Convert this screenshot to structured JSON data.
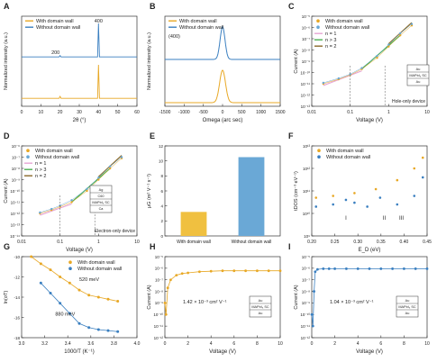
{
  "figure": {
    "title": ""
  },
  "colors": {
    "orange": "#e8a825",
    "blue": "#3a7fc0",
    "light_blue": "#6aa8d6",
    "pink": "#e7a6d3",
    "green": "#4caf50",
    "brown": "#8a6a2a",
    "dark": "#333333"
  },
  "chart_data": [
    {
      "panel": "A",
      "type": "line",
      "xlabel": "2θ (°)",
      "ylabel": "Normalized intensity (a.u.)",
      "xlim": [
        0,
        60
      ],
      "xticks": [
        0,
        10,
        20,
        30,
        40,
        50,
        60
      ],
      "series": [
        {
          "name": "With domain wall",
          "color": "#e8a825",
          "x": [
            0,
            19.5,
            20,
            20.5,
            39.5,
            40,
            40.5,
            60
          ],
          "y": [
            0.02,
            0.02,
            0.08,
            0.02,
            0.02,
            1.0,
            0.02,
            0.02
          ]
        },
        {
          "name": "Without domain wall",
          "color": "#3a7fc0",
          "x": [
            0,
            19.5,
            20,
            20.5,
            39.5,
            40,
            40.5,
            60
          ],
          "y": [
            0.02,
            0.02,
            0.06,
            0.02,
            0.02,
            1.0,
            0.02,
            0.02
          ]
        }
      ],
      "annotations": [
        "200",
        "400"
      ]
    },
    {
      "panel": "B",
      "type": "line",
      "xlabel": "Omega (arc sec)",
      "ylabel": "Normalized intensity (a.u.)",
      "xlim": [
        -1500,
        1500
      ],
      "xticks": [
        -1500,
        -1000,
        -500,
        0,
        500,
        1000,
        1500
      ],
      "series": [
        {
          "name": "With domain wall",
          "color": "#e8a825",
          "center": 0,
          "fwhm": 180
        },
        {
          "name": "Without domain wall",
          "color": "#3a7fc0",
          "center": 0,
          "fwhm": 150
        }
      ],
      "annotations": [
        "(400)"
      ]
    },
    {
      "panel": "C",
      "type": "scatter",
      "xlabel": "Voltage (V)",
      "ylabel": "Current (A)",
      "xscale": "log",
      "yscale": "log",
      "xlim": [
        0.01,
        10
      ],
      "ylim": [
        1e-13,
        1e-05
      ],
      "xticks": [
        "0.01",
        "0.1",
        "1",
        "10"
      ],
      "yticks": [
        "10⁻¹³",
        "10⁻¹²",
        "10⁻¹¹",
        "10⁻¹⁰",
        "10⁻⁹",
        "10⁻⁸",
        "10⁻⁷",
        "10⁻⁶",
        "10⁻⁵"
      ],
      "series": [
        {
          "name": "With domain wall",
          "color": "#e8a825",
          "x": [
            0.02,
            0.05,
            0.1,
            0.2,
            0.5,
            1,
            2,
            4
          ],
          "y": [
            1e-11,
            2.5e-11,
            6e-11,
            2e-10,
            2e-09,
            2e-08,
            2e-07,
            1.5e-06
          ]
        },
        {
          "name": "Without domain wall",
          "color": "#6aa8d6",
          "x": [
            0.02,
            0.05,
            0.1,
            0.2,
            0.5,
            1,
            2,
            4
          ],
          "y": [
            1.2e-11,
            3e-11,
            7e-11,
            2.5e-10,
            3e-09,
            3e-08,
            3e-07,
            2e-06
          ]
        }
      ],
      "fits": [
        {
          "name": "n = 1",
          "color": "#e7a6d3"
        },
        {
          "name": "n > 3",
          "color": "#4caf50"
        },
        {
          "name": "n = 2",
          "color": "#8a6a2a"
        }
      ],
      "annotations": [
        "Hole-only device"
      ]
    },
    {
      "panel": "D",
      "type": "scatter",
      "xlabel": "Voltage (V)",
      "ylabel": "Current (A)",
      "xscale": "log",
      "yscale": "log",
      "xlim": [
        0.01,
        10
      ],
      "ylim": [
        1e-14,
        1e-06
      ],
      "xticks": [
        "0.01",
        "0.1",
        "1",
        "10"
      ],
      "yticks": [
        "10⁻¹⁴",
        "10⁻¹³",
        "10⁻¹²",
        "10⁻¹¹",
        "10⁻¹⁰",
        "10⁻⁹",
        "10⁻⁸",
        "10⁻⁷",
        "10⁻⁶"
      ],
      "series": [
        {
          "name": "With domain wall",
          "color": "#e8a825",
          "x": [
            0.03,
            0.06,
            0.1,
            0.2,
            0.5,
            1,
            2,
            4
          ],
          "y": [
            1e-12,
            2e-12,
            4e-12,
            1e-11,
            1e-10,
            1e-09,
            1e-08,
            8e-08
          ]
        },
        {
          "name": "Without domain wall",
          "color": "#6aa8d6",
          "x": [
            0.03,
            0.06,
            0.1,
            0.2,
            0.5,
            1,
            2,
            4
          ],
          "y": [
            1.2e-12,
            2.5e-12,
            5e-12,
            1.5e-11,
            1.5e-10,
            1.5e-09,
            1.5e-08,
            1e-07
          ]
        }
      ],
      "fits": [
        {
          "name": "n = 1",
          "color": "#e7a6d3"
        },
        {
          "name": "n > 3",
          "color": "#4caf50"
        },
        {
          "name": "n = 2",
          "color": "#8a6a2a"
        }
      ],
      "annotations": [
        "Electron-only device"
      ]
    },
    {
      "panel": "E",
      "type": "bar",
      "ylabel": "μG (m² V⁻¹ s⁻¹)",
      "ylim": [
        0,
        12
      ],
      "yticks": [
        0,
        2,
        4,
        6,
        8,
        10,
        12
      ],
      "categories": [
        "With domain wall",
        "Without domain wall"
      ],
      "values": [
        3.2,
        10.5
      ],
      "colors": [
        "#f0c040",
        "#6aa8d6"
      ]
    },
    {
      "panel": "F",
      "type": "scatter",
      "xlabel": "E_D (eV)",
      "ylabel": "tDOS (cm⁻³ eV⁻¹)",
      "yscale": "log",
      "xlim": [
        0.2,
        0.47
      ],
      "ylim": [
        1000000000.0,
        10000000000000.0
      ],
      "xticks": [
        "0.20",
        "0.25",
        "0.30",
        "0.35",
        "0.40",
        "0.45"
      ],
      "yticks": [
        "10⁹",
        "10¹⁰",
        "10¹¹",
        "10¹²",
        "10¹³"
      ],
      "series": [
        {
          "name": "With domain wall",
          "color": "#e8a825",
          "x": [
            0.21,
            0.25,
            0.3,
            0.35,
            0.4,
            0.44,
            0.46
          ],
          "y": [
            50000000000.0,
            60000000000.0,
            80000000000.0,
            120000000000.0,
            300000000000.0,
            1000000000000.0,
            3000000000000.0
          ]
        },
        {
          "name": "Without domain wall",
          "color": "#3a7fc0",
          "x": [
            0.21,
            0.25,
            0.28,
            0.3,
            0.33,
            0.36,
            0.4,
            0.44,
            0.46
          ],
          "y": [
            20000000000.0,
            25000000000.0,
            40000000000.0,
            30000000000.0,
            20000000000.0,
            50000000000.0,
            25000000000.0,
            60000000000.0,
            400000000000.0
          ]
        }
      ],
      "annotations": [
        "I",
        "II",
        "III"
      ]
    },
    {
      "panel": "G",
      "type": "scatter",
      "xlabel": "1000/T (K⁻¹)",
      "ylabel": "ln(σT)",
      "xlim": [
        2.9,
        4.1
      ],
      "ylim": [
        -18,
        -10
      ],
      "xticks": [
        "3.0",
        "3.2",
        "3.4",
        "3.6",
        "3.8",
        "4.0"
      ],
      "yticks": [
        "-18",
        "-16",
        "-14",
        "-12",
        "-10"
      ],
      "series": [
        {
          "name": "With domain wall",
          "color": "#e8a825",
          "x": [
            3.0,
            3.1,
            3.2,
            3.3,
            3.4,
            3.5,
            3.6,
            3.7,
            3.8,
            3.9
          ],
          "y": [
            -10.0,
            -10.7,
            -11.3,
            -12.0,
            -12.6,
            -13.3,
            -13.8,
            -14.0,
            -14.2,
            -14.4
          ]
        },
        {
          "name": "Without domain wall",
          "color": "#3a7fc0",
          "x": [
            3.1,
            3.2,
            3.3,
            3.4,
            3.5,
            3.6,
            3.7,
            3.8,
            3.9
          ],
          "y": [
            -12.6,
            -13.6,
            -14.6,
            -15.6,
            -16.6,
            -17.0,
            -17.2,
            -17.3,
            -17.4
          ]
        }
      ],
      "annotations": [
        "520 meV",
        "880 meV"
      ]
    },
    {
      "panel": "H",
      "type": "scatter",
      "xlabel": "Voltage (V)",
      "ylabel": "Current (A)",
      "yscale": "log",
      "xlim": [
        0,
        10
      ],
      "ylim": [
        1e-12,
        1e-05
      ],
      "xticks": [
        "0",
        "2",
        "4",
        "6",
        "8",
        "10"
      ],
      "yticks": [
        "10⁻¹²",
        "10⁻¹¹",
        "10⁻¹⁰",
        "10⁻⁹",
        "10⁻⁸",
        "10⁻⁷",
        "10⁻⁶",
        "10⁻⁵"
      ],
      "series": [
        {
          "name": "",
          "color": "#e8a825",
          "x": [
            0,
            0.1,
            0.25,
            0.5,
            1,
            1.5,
            2,
            3,
            4,
            5,
            6,
            7,
            8,
            9,
            10
          ],
          "y": [
            1e-09,
            1e-10,
            2e-08,
            1e-07,
            2.5e-07,
            3.5e-07,
            4e-07,
            5e-07,
            5.5e-07,
            6e-07,
            6e-07,
            6e-07,
            6e-07,
            6e-07,
            6e-07
          ]
        }
      ],
      "annotations": [
        "1.42 × 10⁻³ cm² V⁻¹"
      ]
    },
    {
      "panel": "I",
      "type": "scatter",
      "xlabel": "Voltage (V)",
      "ylabel": "Current (A)",
      "yscale": "log",
      "xlim": [
        0,
        10
      ],
      "ylim": [
        1e-12,
        1e-05
      ],
      "xticks": [
        "0",
        "2",
        "4",
        "6",
        "8",
        "10"
      ],
      "yticks": [
        "10⁻¹²",
        "10⁻¹¹",
        "10⁻¹⁰",
        "10⁻⁹",
        "10⁻⁸",
        "10⁻⁷",
        "10⁻⁶",
        "10⁻⁵"
      ],
      "series": [
        {
          "name": "",
          "color": "#3a7fc0",
          "x": [
            0,
            0.1,
            0.2,
            0.3,
            0.5,
            1,
            1.5,
            2,
            3,
            4,
            5,
            6,
            7,
            8,
            9,
            10
          ],
          "y": [
            1e-10,
            1e-11,
            1e-08,
            5e-07,
            8e-07,
            9e-07,
            9e-07,
            9e-07,
            9e-07,
            9e-07,
            9e-07,
            9e-07,
            9e-07,
            9e-07,
            9e-07,
            9e-07
          ]
        }
      ],
      "annotations": [
        "1.04 × 10⁻³ cm² V⁻¹"
      ]
    }
  ],
  "device_labels": {
    "au": "Au",
    "mapb": "MAPbI₃ SC",
    "pedot": "PEDOT",
    "ca": "Ca",
    "c60": "C60",
    "ag": "Ag"
  }
}
